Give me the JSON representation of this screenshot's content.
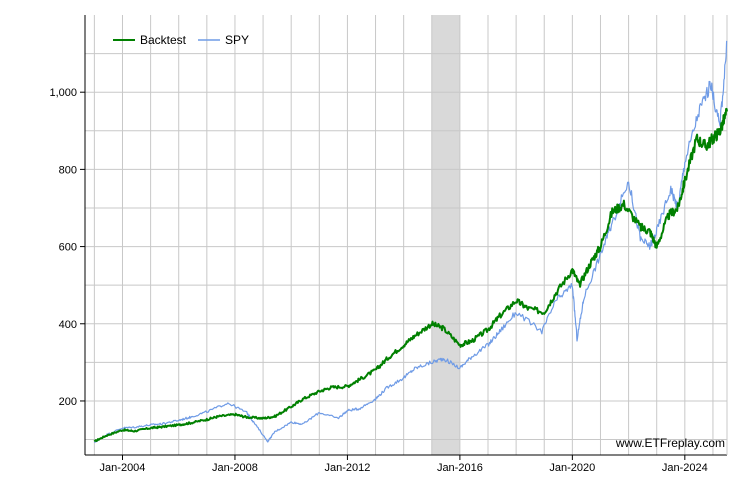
{
  "chart_data": {
    "type": "line",
    "title": "",
    "xlabel": "",
    "ylabel": "",
    "x_range": [
      "2002-09",
      "2025-07"
    ],
    "ylim": [
      60,
      1200
    ],
    "x_ticks": [
      "Jan-2004",
      "Jan-2008",
      "Jan-2012",
      "Jan-2016",
      "Jan-2020",
      "Jan-2024"
    ],
    "y_ticks": [
      200,
      400,
      600,
      800,
      "1,000"
    ],
    "grid": true,
    "legend_position": "top-left",
    "shaded_period": {
      "start": "2015-01",
      "end": "2016-01",
      "color": "#d9d9d9"
    },
    "watermark": "www.ETFreplay.com",
    "series": [
      {
        "name": "Backtest",
        "color": "#008000",
        "points": [
          [
            "2003-01",
            95
          ],
          [
            "2003-06",
            110
          ],
          [
            "2004-01",
            125
          ],
          [
            "2004-06",
            122
          ],
          [
            "2005-01",
            130
          ],
          [
            "2005-06",
            133
          ],
          [
            "2006-01",
            138
          ],
          [
            "2006-06",
            143
          ],
          [
            "2007-01",
            152
          ],
          [
            "2007-06",
            160
          ],
          [
            "2008-01",
            165
          ],
          [
            "2008-06",
            158
          ],
          [
            "2009-01",
            155
          ],
          [
            "2009-06",
            160
          ],
          [
            "2010-01",
            185
          ],
          [
            "2010-06",
            205
          ],
          [
            "2011-01",
            225
          ],
          [
            "2011-06",
            235
          ],
          [
            "2012-01",
            238
          ],
          [
            "2012-06",
            255
          ],
          [
            "2013-01",
            280
          ],
          [
            "2013-06",
            310
          ],
          [
            "2014-01",
            345
          ],
          [
            "2014-06",
            370
          ],
          [
            "2015-01",
            400
          ],
          [
            "2015-06",
            388
          ],
          [
            "2016-01",
            345
          ],
          [
            "2016-06",
            355
          ],
          [
            "2017-01",
            385
          ],
          [
            "2017-06",
            420
          ],
          [
            "2018-01",
            460
          ],
          [
            "2018-06",
            440
          ],
          [
            "2019-01",
            430
          ],
          [
            "2019-06",
            480
          ],
          [
            "2020-01",
            540
          ],
          [
            "2020-04",
            500
          ],
          [
            "2020-09",
            560
          ],
          [
            "2021-01",
            600
          ],
          [
            "2021-06",
            690
          ],
          [
            "2021-11",
            710
          ],
          [
            "2022-06",
            650
          ],
          [
            "2022-10",
            640
          ],
          [
            "2023-01",
            600
          ],
          [
            "2023-06",
            680
          ],
          [
            "2023-10",
            700
          ],
          [
            "2024-01",
            770
          ],
          [
            "2024-06",
            880
          ],
          [
            "2024-10",
            860
          ],
          [
            "2025-01",
            880
          ],
          [
            "2025-04",
            900
          ],
          [
            "2025-07",
            950
          ]
        ]
      },
      {
        "name": "SPY",
        "color": "#6f9be6",
        "points": [
          [
            "2003-01",
            92
          ],
          [
            "2003-06",
            112
          ],
          [
            "2004-01",
            130
          ],
          [
            "2004-06",
            132
          ],
          [
            "2005-01",
            138
          ],
          [
            "2005-06",
            141
          ],
          [
            "2006-01",
            150
          ],
          [
            "2006-06",
            158
          ],
          [
            "2007-01",
            172
          ],
          [
            "2007-10",
            195
          ],
          [
            "2008-06",
            170
          ],
          [
            "2008-09",
            145
          ],
          [
            "2009-03",
            95
          ],
          [
            "2009-06",
            120
          ],
          [
            "2010-01",
            145
          ],
          [
            "2010-06",
            140
          ],
          [
            "2011-01",
            170
          ],
          [
            "2011-09",
            155
          ],
          [
            "2012-01",
            175
          ],
          [
            "2012-06",
            180
          ],
          [
            "2013-01",
            205
          ],
          [
            "2013-06",
            235
          ],
          [
            "2014-01",
            260
          ],
          [
            "2014-06",
            285
          ],
          [
            "2015-01",
            300
          ],
          [
            "2015-06",
            310
          ],
          [
            "2016-01",
            285
          ],
          [
            "2016-06",
            315
          ],
          [
            "2017-01",
            345
          ],
          [
            "2017-06",
            380
          ],
          [
            "2018-01",
            430
          ],
          [
            "2018-12",
            380
          ],
          [
            "2019-06",
            460
          ],
          [
            "2020-01",
            500
          ],
          [
            "2020-03",
            360
          ],
          [
            "2020-06",
            470
          ],
          [
            "2021-01",
            580
          ],
          [
            "2021-06",
            660
          ],
          [
            "2022-01",
            770
          ],
          [
            "2022-06",
            620
          ],
          [
            "2022-10",
            600
          ],
          [
            "2023-01",
            640
          ],
          [
            "2023-07",
            750
          ],
          [
            "2023-10",
            700
          ],
          [
            "2024-01",
            820
          ],
          [
            "2024-07",
            950
          ],
          [
            "2024-12",
            1020
          ],
          [
            "2025-04",
            910
          ],
          [
            "2025-07",
            1130
          ]
        ]
      }
    ]
  }
}
